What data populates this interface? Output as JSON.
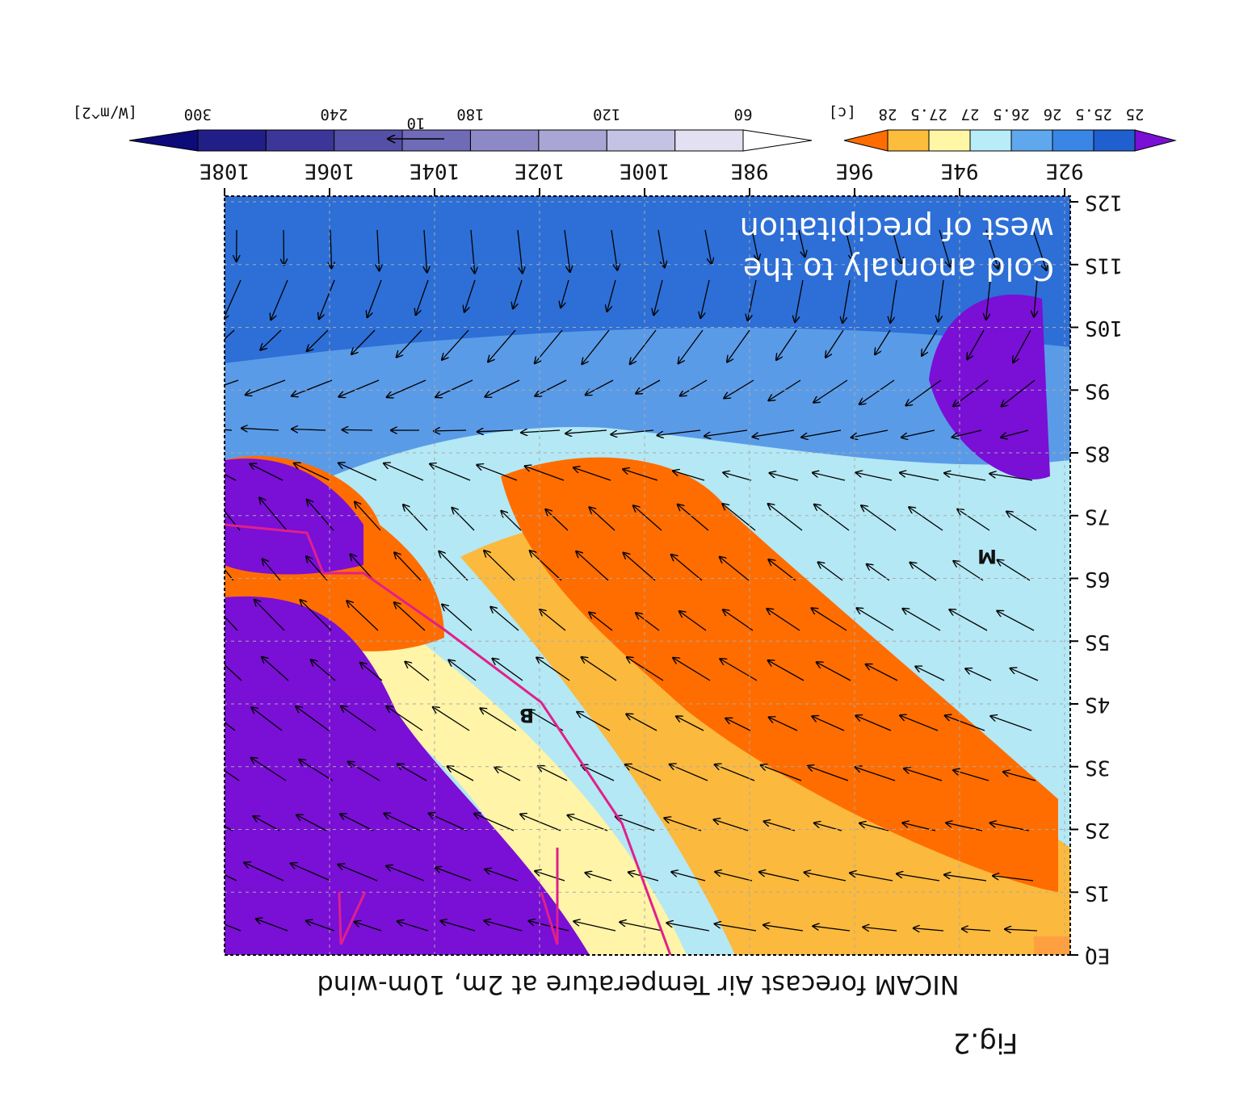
{
  "figure_label": "Fig.2",
  "title": "NICAM forecast Air Temperature at 2m, 10m-wind",
  "annotation": [
    "Cold anomaly to the",
    "west of precipitation"
  ],
  "markers": [
    "M",
    "B"
  ],
  "longitude_labels": [
    "92E",
    "94E",
    "96E",
    "98E",
    "100E",
    "102E",
    "104E",
    "106E",
    "108E"
  ],
  "latitude_labels": [
    "EQ",
    "1S",
    "2S",
    "3S",
    "4S",
    "5S",
    "6S",
    "7S",
    "8S",
    "9S",
    "10S",
    "11S",
    "12S"
  ],
  "temperature_colorbar": {
    "unit": "[c]",
    "labels": [
      "25",
      "25.5",
      "26",
      "26.5",
      "27",
      "27.5",
      "28"
    ]
  },
  "radiation_colorbar": {
    "unit": "[W/m^2]",
    "labels": [
      "60",
      "120",
      "180",
      "240",
      "300"
    ]
  },
  "wind_reference": "10"
}
